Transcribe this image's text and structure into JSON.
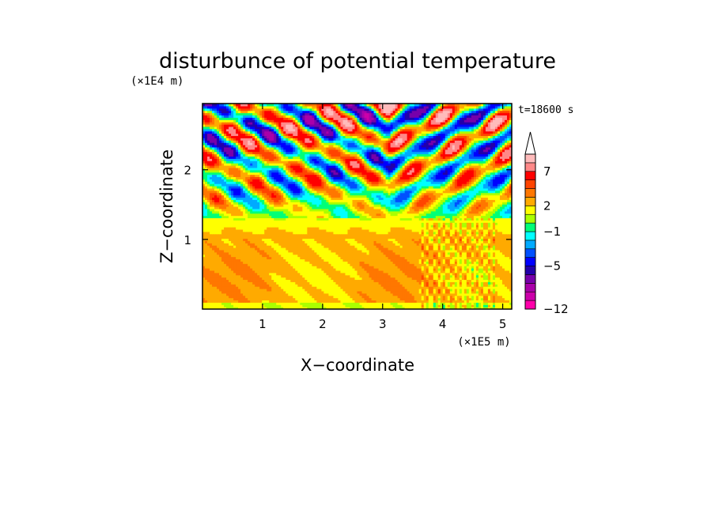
{
  "chart_data": {
    "type": "heatmap",
    "title": "disturbunce of potential temperature",
    "xlabel": "X−coordinate",
    "ylabel": "Z−coordinate",
    "x_unit": "(×1E5 m)",
    "y_unit": "(×1E4 m)",
    "time_label": "t=18600 s",
    "xlim": [
      0,
      5.15
    ],
    "ylim": [
      0,
      2.95
    ],
    "x_ticks": [
      "1",
      "2",
      "3",
      "4",
      "5"
    ],
    "y_ticks": [
      "1",
      "2"
    ],
    "x_tick_values": [
      1,
      2,
      3,
      4,
      5
    ],
    "y_tick_values": [
      1,
      2
    ],
    "grid": false,
    "colorbar": {
      "placement": "right",
      "extend": "max",
      "labels": [
        "7",
        "2",
        "−1",
        "−5",
        "−12"
      ],
      "label_values": [
        7,
        2,
        -1,
        -5,
        -12
      ],
      "levels": [
        -12,
        -10.5,
        -9,
        -7.5,
        -6,
        -5,
        -4,
        -3,
        -2,
        -1,
        0,
        1,
        2,
        3,
        4,
        5,
        7,
        9,
        11
      ],
      "colors": [
        "#ff00aa",
        "#cc00aa",
        "#aa00aa",
        "#7700aa",
        "#2200aa",
        "#0000ff",
        "#0050ff",
        "#00aaff",
        "#00ffff",
        "#00ff77",
        "#aaff00",
        "#ffff00",
        "#ffaa00",
        "#ff7700",
        "#ff4400",
        "#ff0000",
        "#ff8888",
        "#ffbbbb"
      ]
    }
  }
}
